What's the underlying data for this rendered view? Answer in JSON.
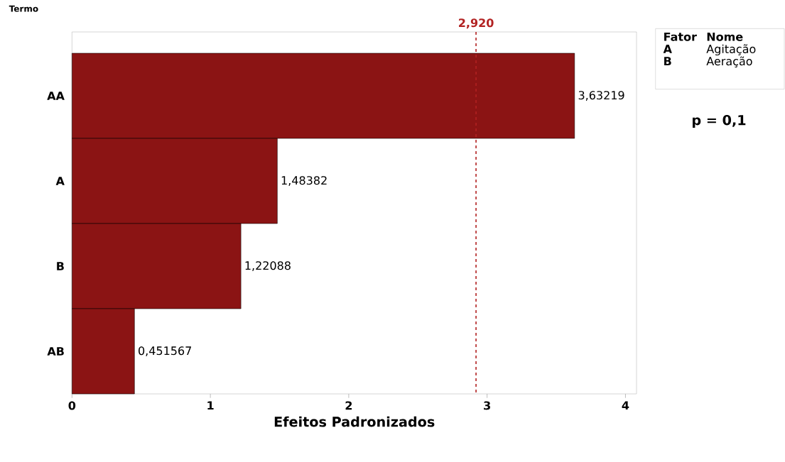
{
  "chart_data": {
    "type": "bar",
    "orientation": "horizontal",
    "xlabel": "Efeitos Padronizados",
    "ylabel": "Termo",
    "categories": [
      "AA",
      "A",
      "B",
      "AB"
    ],
    "values": [
      3.63219,
      1.48382,
      1.22088,
      0.451567
    ],
    "value_labels": [
      "3,63219",
      "1,48382",
      "1,22088",
      "0,451567"
    ],
    "color": "#8b1414",
    "xlim": [
      0,
      4.08
    ],
    "xticks": [
      0,
      1,
      2,
      3,
      4
    ],
    "ref_lines": [
      {
        "axis": "x",
        "value": 2.92,
        "label": "2,920",
        "color": "#b22222",
        "line_style": "dashed"
      }
    ],
    "annotations": [
      "Fator",
      "Nome",
      "A",
      "Agitação",
      "B",
      "Aeração",
      "p = 0,1"
    ],
    "grid": false
  }
}
